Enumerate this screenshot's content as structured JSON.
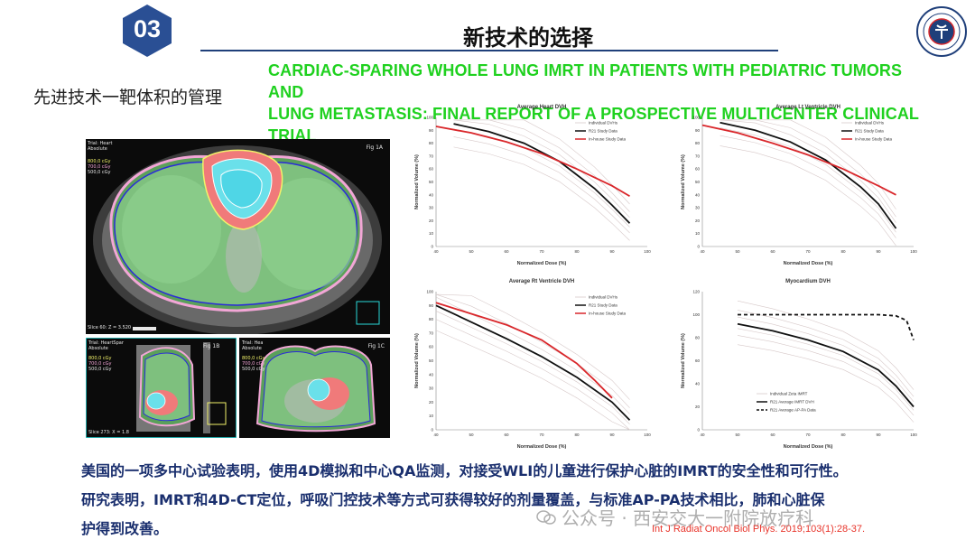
{
  "header": {
    "badge_number": "03",
    "page_title": "新技术的选择"
  },
  "paper_title": {
    "line1": "CARDIAC-SPARING WHOLE LUNG IMRT IN PATIENTS WITH PEDIATRIC TUMORS AND",
    "line2": "LUNG METASTASIS: FINAL REPORT OF A PROSPECTIVE MULTICENTER CLINICAL TRIAL"
  },
  "section_title": "先进技术一靶体积的管理",
  "ct_figures": {
    "fig_a": {
      "label": "Fig 1A",
      "header_lines": [
        "Trial: Heart",
        "Absolute"
      ],
      "legend": [
        "800,0 cGy",
        "700,0 cGy",
        "500,0 cGy"
      ],
      "slice": "Slice 60: Z = 3.520"
    },
    "fig_b": {
      "label": "Fig 1B",
      "header_lines": [
        "Trial: HeartSpar",
        "Absolute"
      ],
      "legend": [
        "800,0 cGy",
        "700,0 cGy",
        "500,0 cGy"
      ],
      "slice": "Slice 273: X = 1.8"
    },
    "fig_c": {
      "label": "Fig 1C",
      "header_lines": [
        "Trial: Hea",
        "Absolute"
      ],
      "legend": [
        "800,0 cGy",
        "700,0 cGy",
        "500,0 cGy"
      ],
      "slice": ""
    }
  },
  "colors": {
    "title_green": "#1fd11f",
    "body_blue": "#1a2f6e",
    "citation_red": "#e8342a",
    "badge_blue": "#2a4f94",
    "rt_line": "#111111",
    "inhouse_line": "#d9262a",
    "individual_line": "#d7c9c9"
  },
  "chart_data": [
    {
      "type": "line",
      "title": "Average Heart DVH",
      "xlabel": "Normalized Dose (%)",
      "ylabel": "Normalized Volume (%)",
      "xlim": [
        40,
        100
      ],
      "ylim": [
        0,
        100
      ],
      "xticks": [
        40,
        50,
        60,
        70,
        80,
        90,
        100
      ],
      "yticks": [
        0,
        10,
        20,
        30,
        40,
        50,
        60,
        70,
        80,
        90,
        100
      ],
      "legend": [
        "Individual DVHs",
        "R21 Study Data",
        "In-house Study Data"
      ],
      "series": [
        {
          "name": "R21 Study Data",
          "x": [
            45,
            55,
            65,
            75,
            85,
            90,
            95
          ],
          "y": [
            95,
            89,
            80,
            66,
            45,
            32,
            18
          ]
        },
        {
          "name": "In-house Study Data",
          "x": [
            40,
            50,
            60,
            70,
            80,
            90,
            95
          ],
          "y": [
            93,
            88,
            81,
            72,
            60,
            47,
            39
          ]
        }
      ]
    },
    {
      "type": "line",
      "title": "Average Lt Ventricle DVH",
      "xlabel": "Normalized Dose (%)",
      "ylabel": "Normalized Volume (%)",
      "xlim": [
        40,
        100
      ],
      "ylim": [
        0,
        100
      ],
      "xticks": [
        40,
        50,
        60,
        70,
        80,
        90,
        100
      ],
      "yticks": [
        0,
        10,
        20,
        30,
        40,
        50,
        60,
        70,
        80,
        90,
        100
      ],
      "legend": [
        "Individual DVHs",
        "R21 Study Data",
        "In-house Study Data"
      ],
      "series": [
        {
          "name": "R21 Study Data",
          "x": [
            45,
            55,
            65,
            75,
            85,
            90,
            95
          ],
          "y": [
            96,
            90,
            81,
            67,
            46,
            33,
            14
          ]
        },
        {
          "name": "In-house Study Data",
          "x": [
            40,
            50,
            60,
            70,
            80,
            90,
            95
          ],
          "y": [
            94,
            88,
            80,
            71,
            60,
            47,
            40
          ]
        }
      ]
    },
    {
      "type": "line",
      "title": "Average Rt Ventricle DVH",
      "xlabel": "Normalized Dose (%)",
      "ylabel": "Normalized Volume (%)",
      "xlim": [
        40,
        100
      ],
      "ylim": [
        0,
        100
      ],
      "xticks": [
        40,
        50,
        60,
        70,
        80,
        90,
        100
      ],
      "yticks": [
        0,
        10,
        20,
        30,
        40,
        50,
        60,
        70,
        80,
        90,
        100
      ],
      "legend": [
        "Individual DVHs",
        "R21 Study Data",
        "In-house Study Data"
      ],
      "series": [
        {
          "name": "R21 Study Data",
          "x": [
            40,
            50,
            60,
            70,
            80,
            90,
            95
          ],
          "y": [
            90,
            78,
            66,
            53,
            38,
            20,
            7
          ]
        },
        {
          "name": "In-house Study Data",
          "x": [
            40,
            50,
            60,
            70,
            80,
            85,
            90
          ],
          "y": [
            92,
            84,
            76,
            65,
            48,
            36,
            23
          ]
        }
      ]
    },
    {
      "type": "line",
      "title": "Myocardium DVH",
      "xlabel": "Normalized Dose (%)",
      "ylabel": "Normalized Volume (%)",
      "xlim": [
        40,
        100
      ],
      "ylim": [
        0,
        120
      ],
      "xticks": [
        40,
        50,
        60,
        70,
        80,
        90,
        100
      ],
      "yticks": [
        0,
        20,
        40,
        60,
        80,
        100,
        120
      ],
      "legend": [
        "Individual Zeta IMRT",
        "R21 Average IMRT DVH",
        "R21 Average AP-PA Data"
      ],
      "series": [
        {
          "name": "R21 Average IMRT DVH",
          "x": [
            50,
            60,
            70,
            80,
            90,
            95,
            100
          ],
          "y": [
            92,
            86,
            78,
            68,
            52,
            38,
            20
          ]
        },
        {
          "name": "R21 Average AP-PA Data",
          "x": [
            50,
            60,
            70,
            80,
            90,
            95,
            98,
            100
          ],
          "y": [
            100,
            100,
            100,
            100,
            100,
            99,
            95,
            78
          ]
        }
      ]
    }
  ],
  "body": {
    "line1": "美国的一项多中心试验表明，使用4D模拟和中心QA监测，对接受WLI的儿童进行保护心脏的IMRT的安全性和可行性。",
    "line2": "研究表明，IMRT和4D-CT定位，呼吸门控技术等方式可获得较好的剂量覆盖，与标准AP-PA技术相比，肺和心脏保",
    "line3": "护得到改善。"
  },
  "watermark": "公众号 · 西安交大一附院放疗科",
  "citation": "Int J Radiat Oncol Biol Phys. 2019;103(1):28-37."
}
